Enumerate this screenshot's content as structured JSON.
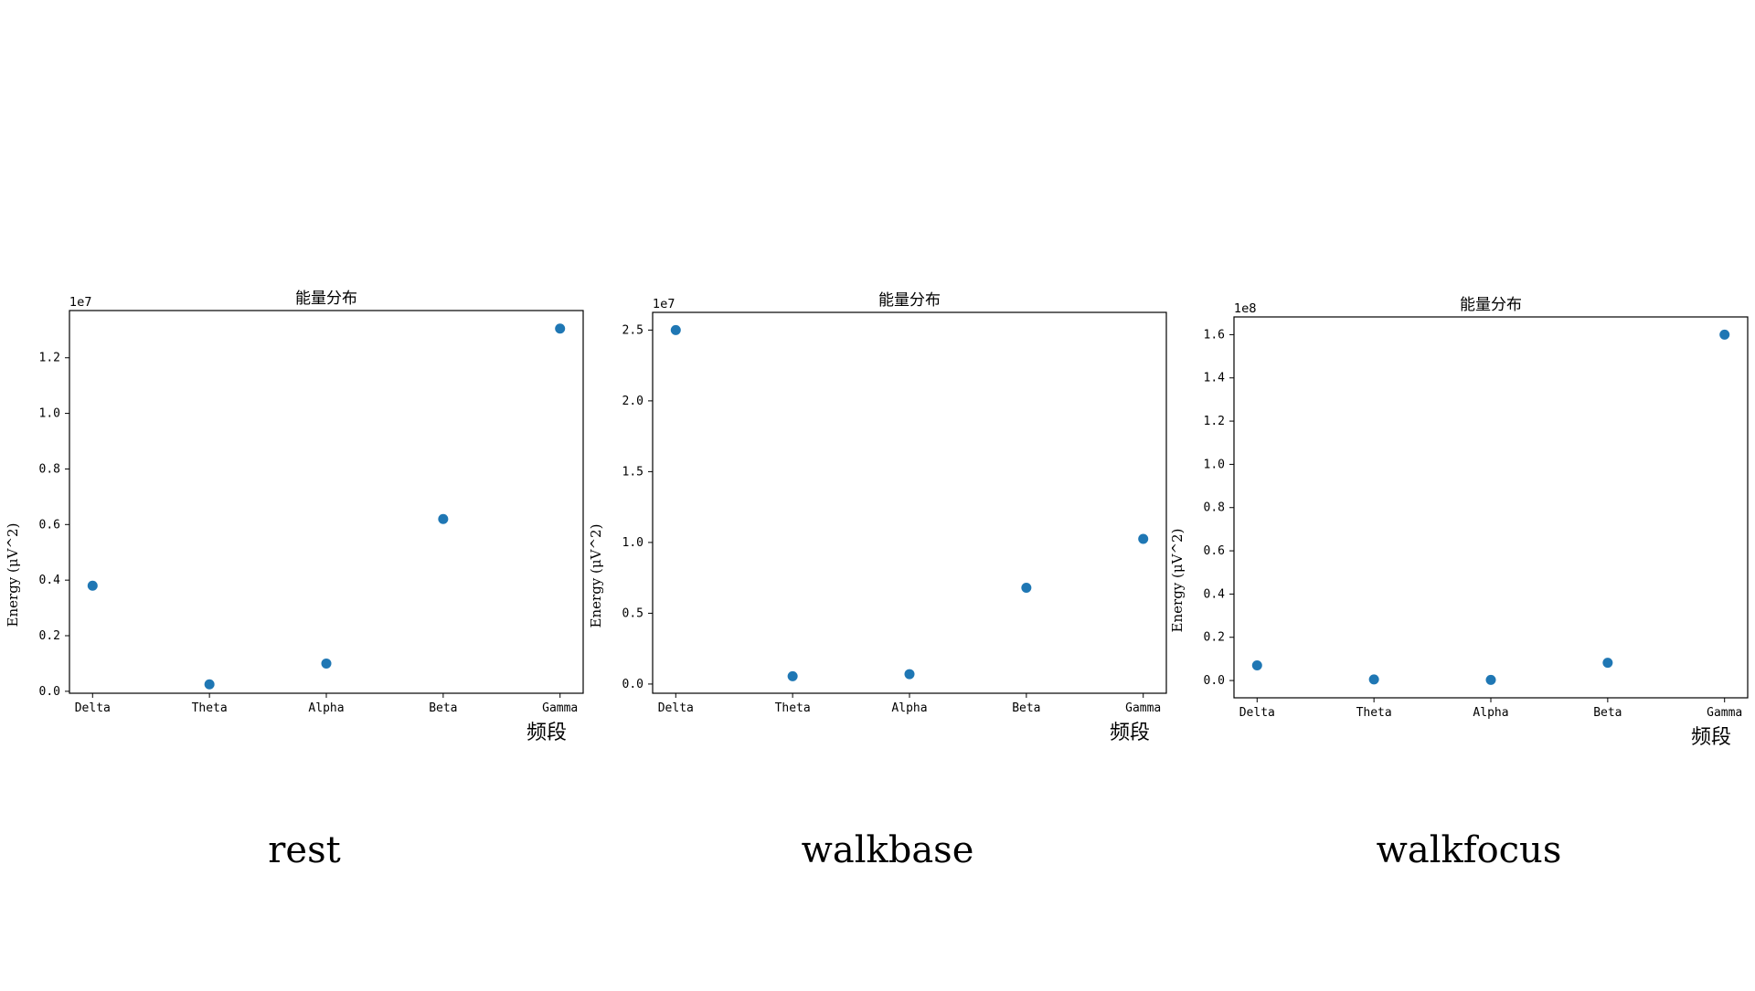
{
  "colors": {
    "marker": "#1f77b4",
    "axis": "#000000"
  },
  "chart_data": [
    {
      "type": "scatter",
      "title": "能量分布",
      "xlabel": "频段",
      "ylabel": "Energy (μV^2)",
      "categories": [
        "Delta",
        "Theta",
        "Alpha",
        "Beta",
        "Gamma"
      ],
      "values": [
        3800000,
        250000,
        1000000,
        6200000,
        13050000
      ],
      "offset_text": "1e7",
      "ylim": [
        -70000,
        13700000
      ],
      "yticks": [
        0,
        2000000,
        4000000,
        6000000,
        8000000,
        10000000,
        12000000
      ],
      "ytick_labels": [
        "0.0",
        "0.2",
        "0.4",
        "0.6",
        "0.8",
        "1.0",
        "1.2"
      ],
      "caption": "rest",
      "grid": false
    },
    {
      "type": "scatter",
      "title": "能量分布",
      "xlabel": "频段",
      "ylabel": "Energy (μV^2)",
      "categories": [
        "Delta",
        "Theta",
        "Alpha",
        "Beta",
        "Gamma"
      ],
      "values": [
        25000000,
        550000,
        700000,
        6800000,
        10250000
      ],
      "offset_text": "1e7",
      "ylim": [
        -650000,
        26250000
      ],
      "yticks": [
        0,
        5000000,
        10000000,
        15000000,
        20000000,
        25000000
      ],
      "ytick_labels": [
        "0.0",
        "0.5",
        "1.0",
        "1.5",
        "2.0",
        "2.5"
      ],
      "caption": "walkbase",
      "grid": false
    },
    {
      "type": "scatter",
      "title": "能量分布",
      "xlabel": "频段",
      "ylabel": "Energy (μV^2)",
      "categories": [
        "Delta",
        "Theta",
        "Alpha",
        "Beta",
        "Gamma"
      ],
      "values": [
        7000000,
        500000,
        300000,
        8200000,
        160000000
      ],
      "offset_text": "1e8",
      "ylim": [
        -8000000,
        168200000
      ],
      "yticks": [
        0,
        20000000,
        40000000,
        60000000,
        80000000,
        100000000,
        120000000,
        140000000,
        160000000
      ],
      "ytick_labels": [
        "0.0",
        "0.2",
        "0.4",
        "0.6",
        "0.8",
        "1.0",
        "1.2",
        "1.4",
        "1.6"
      ],
      "caption": "walkfocus",
      "grid": false
    }
  ]
}
